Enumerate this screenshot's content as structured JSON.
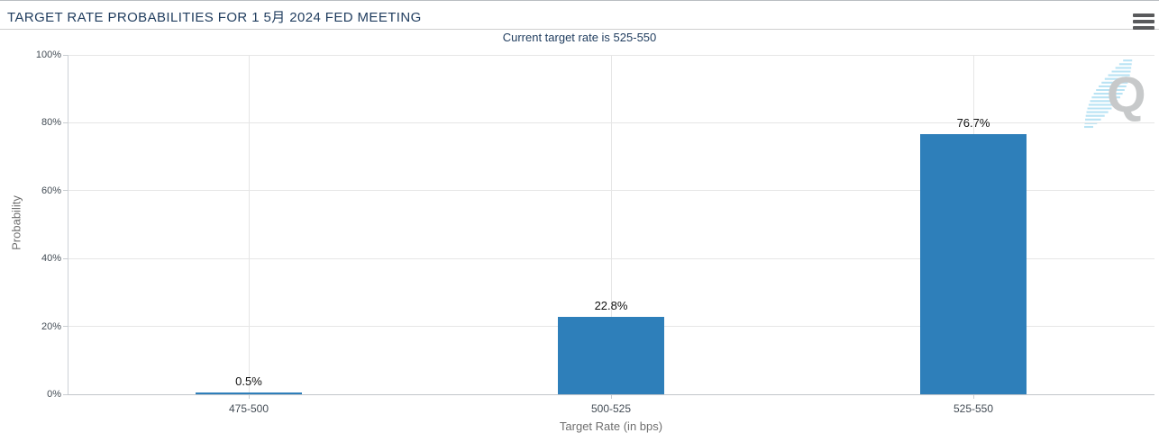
{
  "header": {
    "title": "TARGET RATE PROBABILITIES FOR 1 5月 2024 FED MEETING",
    "menu_icon": "hamburger-icon"
  },
  "subtitle": "Current target rate is 525-550",
  "watermark": {
    "letter": "Q"
  },
  "colors": {
    "bar": "#2e7fba",
    "heading_text": "#1f3c5e",
    "gridline": "#e6e6e6",
    "axis_line": "#c2c6ca",
    "tick_label": "#434c55",
    "axis_title": "#6f6f6f",
    "data_label": "#111111",
    "watermark_q": "#c7c9ca",
    "watermark_swoosh": "#b9e3f4"
  },
  "chart_data": {
    "type": "bar",
    "title": "TARGET RATE PROBABILITIES FOR 1 5月 2024 FED MEETING",
    "subtitle": "Current target rate is 525-550",
    "categories": [
      "475-500",
      "500-525",
      "525-550"
    ],
    "values": [
      0.5,
      22.8,
      76.7
    ],
    "data_labels": [
      "0.5%",
      "22.8%",
      "76.7%"
    ],
    "xlabel": "Target Rate (in bps)",
    "ylabel": "Probability",
    "ylim": [
      0,
      100
    ],
    "yticks": [
      0,
      20,
      40,
      60,
      80,
      100
    ],
    "ytick_labels": [
      "0%",
      "20%",
      "40%",
      "60%",
      "80%",
      "100%"
    ],
    "grid": true,
    "legend": false
  }
}
